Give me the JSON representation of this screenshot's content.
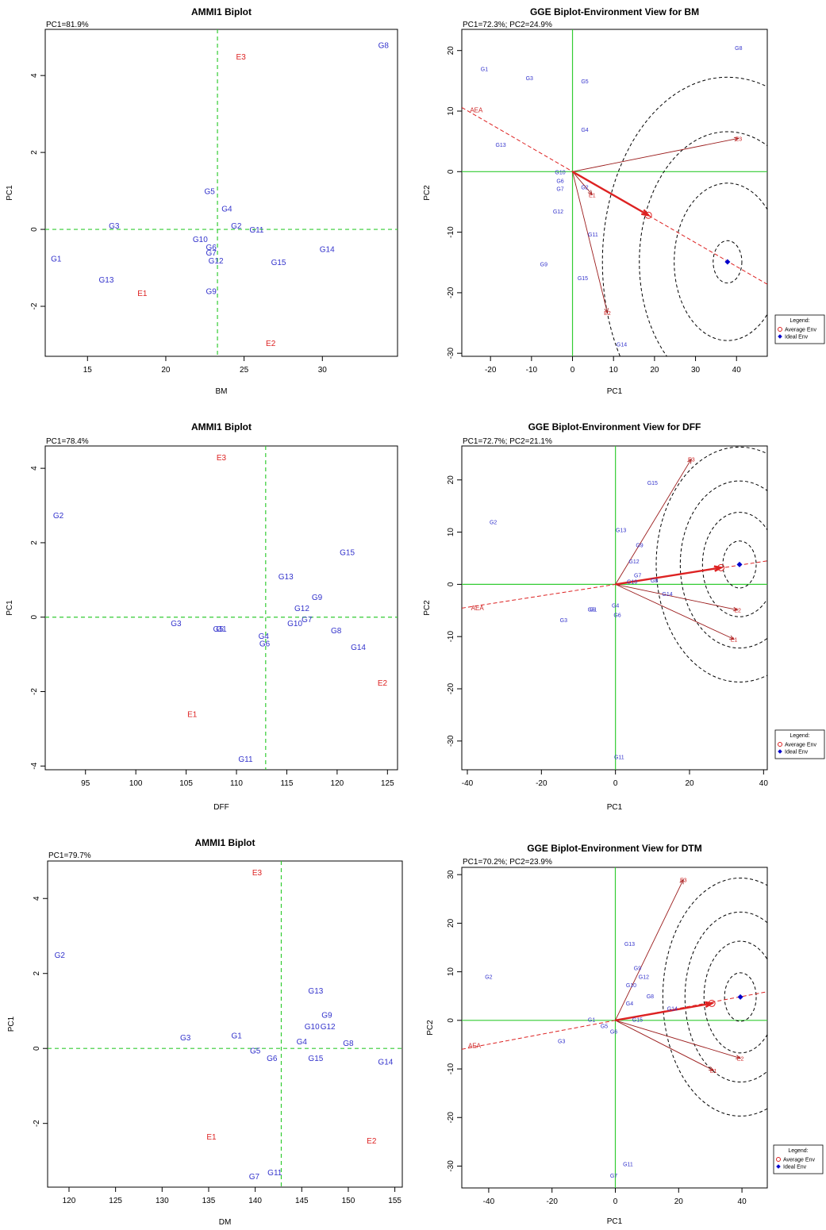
{
  "colors": {
    "genotype": "#3333cc",
    "environment": "#dd2222",
    "env_vector": "#9b1c1c",
    "ref_line": "#33cc33",
    "aea": "#dd2222",
    "avg_env": "#dd2222",
    "ideal_env": "#0000cc"
  },
  "legend": {
    "title": "Legend:",
    "items": [
      "Average Env",
      "Ideal Env"
    ]
  },
  "chart_data": [
    {
      "type": "scatter",
      "kind": "ammi",
      "title": "AMMI1 Biplot",
      "subtitle": "PC1=81.9%",
      "xlabel": "BM",
      "ylabel": "PC1",
      "xlim": [
        12.3,
        34.8
      ],
      "ylim": [
        -3.3,
        5.2
      ],
      "xticks": [
        15,
        20,
        25,
        30
      ],
      "yticks": [
        -2,
        0,
        2,
        4
      ],
      "ref_lines": {
        "x": 23.3,
        "y": 0
      },
      "genotypes": [
        {
          "label": "G1",
          "x": 13.0,
          "y": -0.75
        },
        {
          "label": "G2",
          "x": 24.5,
          "y": 0.1
        },
        {
          "label": "G3",
          "x": 16.7,
          "y": 0.1
        },
        {
          "label": "G4",
          "x": 23.9,
          "y": 0.55
        },
        {
          "label": "G5",
          "x": 22.8,
          "y": 1.0
        },
        {
          "label": "G6",
          "x": 22.9,
          "y": -0.45
        },
        {
          "label": "G7",
          "x": 22.9,
          "y": -0.6
        },
        {
          "label": "G8",
          "x": 33.9,
          "y": 4.8
        },
        {
          "label": "G9",
          "x": 22.9,
          "y": -1.6
        },
        {
          "label": "G10",
          "x": 22.2,
          "y": -0.25
        },
        {
          "label": "G11",
          "x": 25.8,
          "y": 0.0
        },
        {
          "label": "G12",
          "x": 23.2,
          "y": -0.8
        },
        {
          "label": "G13",
          "x": 16.2,
          "y": -1.3
        },
        {
          "label": "G14",
          "x": 30.3,
          "y": -0.5
        },
        {
          "label": "G15",
          "x": 27.2,
          "y": -0.85
        }
      ],
      "environments": [
        {
          "label": "E1",
          "x": 18.5,
          "y": -1.65
        },
        {
          "label": "E2",
          "x": 26.7,
          "y": -2.95
        },
        {
          "label": "E3",
          "x": 24.8,
          "y": 4.5
        }
      ]
    },
    {
      "type": "scatter",
      "kind": "gge",
      "title": "GGE Biplot-Environment View for BM",
      "subtitle": "PC1=72.3%; PC2=24.9%",
      "xlabel": "PC1",
      "ylabel": "PC2",
      "xlim": [
        -27,
        47.5
      ],
      "ylim": [
        -30.5,
        23.5
      ],
      "xticks": [
        -20,
        -10,
        0,
        10,
        20,
        30,
        40
      ],
      "yticks": [
        -30,
        -20,
        -10,
        0,
        10,
        20
      ],
      "genotypes": [
        {
          "label": "G1",
          "x": -21.5,
          "y": 17.0
        },
        {
          "label": "G2",
          "x": 3.0,
          "y": -2.5
        },
        {
          "label": "G3",
          "x": -10.5,
          "y": 15.5
        },
        {
          "label": "G4",
          "x": 3.0,
          "y": 7.0
        },
        {
          "label": "G5",
          "x": 3.0,
          "y": 15.0
        },
        {
          "label": "G6",
          "x": -3.0,
          "y": -1.5
        },
        {
          "label": "G7",
          "x": -3.0,
          "y": -2.8
        },
        {
          "label": "G8",
          "x": 40.5,
          "y": 20.5
        },
        {
          "label": "G9",
          "x": -7.0,
          "y": -15.2
        },
        {
          "label": "G10",
          "x": -3.0,
          "y": 0.0
        },
        {
          "label": "G11",
          "x": 5.0,
          "y": -10.3
        },
        {
          "label": "G12",
          "x": -3.5,
          "y": -6.5
        },
        {
          "label": "G13",
          "x": -17.5,
          "y": 4.5
        },
        {
          "label": "G14",
          "x": 12.0,
          "y": -28.5
        },
        {
          "label": "G15",
          "x": 2.5,
          "y": -17.5
        }
      ],
      "environments": [
        {
          "label": "E1",
          "x": 4.8,
          "y": -3.8
        },
        {
          "label": "E2",
          "x": 8.5,
          "y": -23.3
        },
        {
          "label": "E3",
          "x": 40.5,
          "y": 5.5
        }
      ],
      "aea_label": "AEA",
      "aea_label_pos": [
        -25.0,
        10.2
      ],
      "aea_line": [
        [
          -27,
          10.6
        ],
        [
          47.5,
          -18.6
        ]
      ],
      "avg_env": [
        18.5,
        -7.2
      ],
      "ideal_env": [
        37.8,
        -14.9
      ],
      "circles": [
        3.5,
        13,
        21.5,
        30.5
      ]
    },
    {
      "type": "scatter",
      "kind": "ammi",
      "title": "AMMI1 Biplot",
      "subtitle": "PC1=78.4%",
      "xlabel": "DFF",
      "ylabel": "PC1",
      "xlim": [
        91,
        126
      ],
      "ylim": [
        -4.1,
        4.6
      ],
      "xticks": [
        95,
        100,
        105,
        110,
        115,
        120,
        125
      ],
      "yticks": [
        -4,
        -2,
        0,
        2,
        4
      ],
      "ref_lines": {
        "x": 112.9,
        "y": 0
      },
      "genotypes": [
        {
          "label": "G1",
          "x": 108.5,
          "y": -0.3
        },
        {
          "label": "G2",
          "x": 92.3,
          "y": 2.75
        },
        {
          "label": "G3",
          "x": 104.0,
          "y": -0.15
        },
        {
          "label": "G4",
          "x": 112.7,
          "y": -0.5
        },
        {
          "label": "G5",
          "x": 108.2,
          "y": -0.3
        },
        {
          "label": "G6",
          "x": 112.8,
          "y": -0.7
        },
        {
          "label": "G7",
          "x": 117.0,
          "y": -0.05
        },
        {
          "label": "G8",
          "x": 119.9,
          "y": -0.35
        },
        {
          "label": "G9",
          "x": 118.0,
          "y": 0.55
        },
        {
          "label": "G10",
          "x": 115.8,
          "y": -0.15
        },
        {
          "label": "G11",
          "x": 110.9,
          "y": -3.8
        },
        {
          "label": "G12",
          "x": 116.5,
          "y": 0.25
        },
        {
          "label": "G13",
          "x": 114.9,
          "y": 1.1
        },
        {
          "label": "G14",
          "x": 122.1,
          "y": -0.8
        },
        {
          "label": "G15",
          "x": 121.0,
          "y": 1.75
        }
      ],
      "environments": [
        {
          "label": "E1",
          "x": 105.6,
          "y": -2.6
        },
        {
          "label": "E2",
          "x": 124.5,
          "y": -1.75
        },
        {
          "label": "E3",
          "x": 108.5,
          "y": 4.3
        }
      ]
    },
    {
      "type": "scatter",
      "kind": "gge",
      "title": "GGE Biplot-Environment View for DFF",
      "subtitle": "PC1=72.7%; PC2=21.1%",
      "xlabel": "PC1",
      "ylabel": "PC2",
      "xlim": [
        -41.5,
        41
      ],
      "ylim": [
        -35.5,
        26.5
      ],
      "xticks": [
        -40,
        -20,
        0,
        20,
        40
      ],
      "yticks": [
        -30,
        -20,
        -10,
        0,
        10,
        20
      ],
      "genotypes": [
        {
          "label": "G1",
          "x": -6.0,
          "y": -4.7
        },
        {
          "label": "G2",
          "x": -33.0,
          "y": 12.0
        },
        {
          "label": "G3",
          "x": -14.0,
          "y": -6.8
        },
        {
          "label": "G4",
          "x": 0.0,
          "y": -4.0
        },
        {
          "label": "G5",
          "x": -6.5,
          "y": -4.7
        },
        {
          "label": "G6",
          "x": 0.5,
          "y": -5.8
        },
        {
          "label": "G7",
          "x": 6.0,
          "y": 1.8
        },
        {
          "label": "G8",
          "x": 10.5,
          "y": 0.8
        },
        {
          "label": "G9",
          "x": 6.5,
          "y": 7.6
        },
        {
          "label": "G10",
          "x": 4.5,
          "y": 0.6
        },
        {
          "label": "G11",
          "x": 1.0,
          "y": -33.0
        },
        {
          "label": "G12",
          "x": 5.0,
          "y": 4.5
        },
        {
          "label": "G13",
          "x": 1.5,
          "y": 10.5
        },
        {
          "label": "G14",
          "x": 14.0,
          "y": -1.8
        },
        {
          "label": "G15",
          "x": 10.0,
          "y": 19.5
        }
      ],
      "environments": [
        {
          "label": "E1",
          "x": 32.0,
          "y": -10.5
        },
        {
          "label": "E2",
          "x": 33.0,
          "y": -4.9
        },
        {
          "label": "E3",
          "x": 20.5,
          "y": 24.0
        }
      ],
      "aea_label": "AEA",
      "aea_label_pos": [
        -39.0,
        -4.5
      ],
      "aea_line": [
        [
          -41.5,
          -4.55
        ],
        [
          41,
          4.5
        ]
      ],
      "avg_env": [
        28.5,
        3.2
      ],
      "ideal_env": [
        33.5,
        3.8
      ],
      "circles": [
        4.5,
        10,
        16,
        22.5
      ]
    },
    {
      "type": "scatter",
      "kind": "ammi",
      "title": "AMMI1 Biplot",
      "subtitle": "PC1=79.7%",
      "xlabel": "DM",
      "ylabel": "PC1",
      "xlim": [
        117.7,
        155.8
      ],
      "ylim": [
        -3.7,
        5.0
      ],
      "xticks": [
        120,
        125,
        130,
        135,
        140,
        145,
        150,
        155
      ],
      "yticks": [
        -2,
        0,
        2,
        4
      ],
      "ref_lines": {
        "x": 142.8,
        "y": 0
      },
      "genotypes": [
        {
          "label": "G1",
          "x": 138.0,
          "y": 0.35
        },
        {
          "label": "G2",
          "x": 119.0,
          "y": 2.5
        },
        {
          "label": "G3",
          "x": 132.5,
          "y": 0.3
        },
        {
          "label": "G4",
          "x": 145.0,
          "y": 0.2
        },
        {
          "label": "G5",
          "x": 140.0,
          "y": -0.05
        },
        {
          "label": "G6",
          "x": 141.8,
          "y": -0.25
        },
        {
          "label": "G7",
          "x": 139.9,
          "y": -3.4
        },
        {
          "label": "G8",
          "x": 150.0,
          "y": 0.15
        },
        {
          "label": "G9",
          "x": 147.7,
          "y": 0.9
        },
        {
          "label": "G10",
          "x": 146.1,
          "y": 0.6
        },
        {
          "label": "G11",
          "x": 142.1,
          "y": -3.3
        },
        {
          "label": "G12",
          "x": 147.8,
          "y": 0.6
        },
        {
          "label": "G13",
          "x": 146.5,
          "y": 1.55
        },
        {
          "label": "G14",
          "x": 154.0,
          "y": -0.35
        },
        {
          "label": "G15",
          "x": 146.5,
          "y": -0.25
        }
      ],
      "environments": [
        {
          "label": "E1",
          "x": 135.3,
          "y": -2.35
        },
        {
          "label": "E2",
          "x": 152.5,
          "y": -2.45
        },
        {
          "label": "E3",
          "x": 140.2,
          "y": 4.7
        }
      ]
    },
    {
      "type": "scatter",
      "kind": "gge",
      "title": "GGE Biplot-Environment View for DTM",
      "subtitle": "PC1=70.2%; PC2=23.9%",
      "xlabel": "PC1",
      "ylabel": "PC2",
      "xlim": [
        -48.5,
        48
      ],
      "ylim": [
        -34.5,
        31.5
      ],
      "xticks": [
        -40,
        -20,
        0,
        20,
        40
      ],
      "yticks": [
        -30,
        -20,
        -10,
        0,
        10,
        20,
        30
      ],
      "genotypes": [
        {
          "label": "G1",
          "x": -7.5,
          "y": 0.2
        },
        {
          "label": "G2",
          "x": -40.0,
          "y": 9.0
        },
        {
          "label": "G3",
          "x": -17.0,
          "y": -4.2
        },
        {
          "label": "G4",
          "x": 4.5,
          "y": 3.6
        },
        {
          "label": "G5",
          "x": -3.5,
          "y": -1.1
        },
        {
          "label": "G6",
          "x": -0.5,
          "y": -2.2
        },
        {
          "label": "G7",
          "x": -0.5,
          "y": -31.9
        },
        {
          "label": "G8",
          "x": 11.0,
          "y": 5.0
        },
        {
          "label": "G9",
          "x": 7.0,
          "y": 10.8
        },
        {
          "label": "G10",
          "x": 5.0,
          "y": 7.3
        },
        {
          "label": "G11",
          "x": 4.0,
          "y": -29.5
        },
        {
          "label": "G12",
          "x": 9.0,
          "y": 9.0
        },
        {
          "label": "G13",
          "x": 4.5,
          "y": 15.8
        },
        {
          "label": "G14",
          "x": 18.0,
          "y": 2.5
        },
        {
          "label": "G15",
          "x": 7.0,
          "y": 0.2
        }
      ],
      "environments": [
        {
          "label": "E1",
          "x": 31.0,
          "y": -10.3
        },
        {
          "label": "E2",
          "x": 39.5,
          "y": -7.8
        },
        {
          "label": "E3",
          "x": 21.5,
          "y": 29.0
        }
      ],
      "aea_label": "AEA",
      "aea_label_pos": [
        -46.5,
        -5.2
      ],
      "aea_line": [
        [
          -48.5,
          -5.95
        ],
        [
          48,
          5.9
        ]
      ],
      "avg_env": [
        30.5,
        3.5
      ],
      "ideal_env": [
        39.5,
        4.8
      ],
      "circles": [
        5,
        11.5,
        17.5,
        24.5
      ]
    }
  ]
}
